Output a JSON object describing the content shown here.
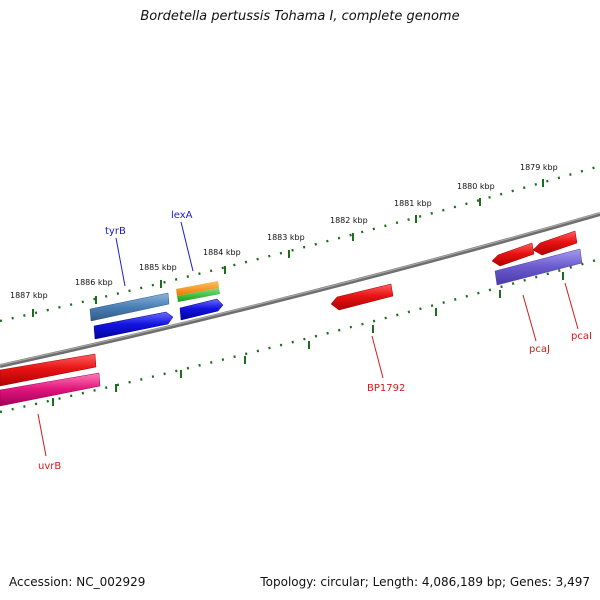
{
  "title": "Bordetella pertussis Tohama I, complete genome",
  "footer": {
    "accession": "Accession: NC_002929",
    "summary": "Topology: circular; Length: 4,086,189 bp; Genes: 3,497"
  },
  "colors": {
    "backbone": "#7a7a7a",
    "ticks": "#1b6e1b",
    "forward_label": "#1a1ad6",
    "reverse_label": "#d61a1a"
  },
  "kbp_labels": [
    "1887 kbp",
    "1886 kbp",
    "1885 kbp",
    "1884 kbp",
    "1883 kbp",
    "1882 kbp",
    "1881 kbp",
    "1880 kbp",
    "1879 kbp"
  ],
  "genes": [
    {
      "name": "tyrB",
      "strand": "forward",
      "color": "#4a7fb5"
    },
    {
      "name": "lexA",
      "strand": "forward",
      "color": "#1414e0"
    },
    {
      "name": "uvrB",
      "strand": "reverse",
      "color": "#e0147a"
    },
    {
      "name": "BP1792",
      "strand": "reverse",
      "color": "#e81414"
    },
    {
      "name": "pcaJ",
      "strand": "reverse",
      "color": "#e81414"
    },
    {
      "name": "pcaI",
      "strand": "reverse",
      "color": "#e81414"
    }
  ]
}
